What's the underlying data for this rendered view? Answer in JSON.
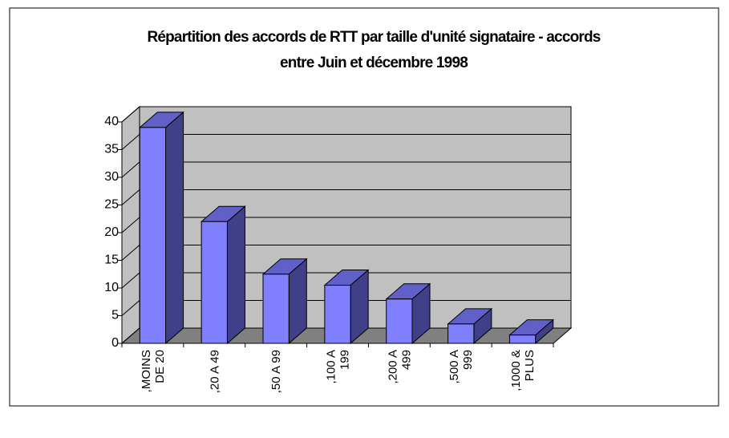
{
  "chart_data": {
    "type": "bar3d",
    "title": [
      "Répartition des accords de RTT par taille d'unité signataire - accords",
      "entre Juin et décembre 1998"
    ],
    "categories": [
      [
        ",MOINS",
        "DE 20"
      ],
      [
        ",20 A 49"
      ],
      [
        ",50 A  99"
      ],
      [
        ",100 A",
        "199"
      ],
      [
        ",200 A",
        "499"
      ],
      [
        ",500 A",
        "999"
      ],
      [
        ",1000 &",
        "PLUS"
      ]
    ],
    "values": [
      39,
      22,
      12.5,
      10.5,
      8,
      3.5,
      1.5
    ],
    "color": "#8080ff",
    "ylim": [
      0,
      40
    ],
    "yticks": [
      0,
      5,
      10,
      15,
      20,
      25,
      30,
      35,
      40
    ],
    "grid": true
  }
}
